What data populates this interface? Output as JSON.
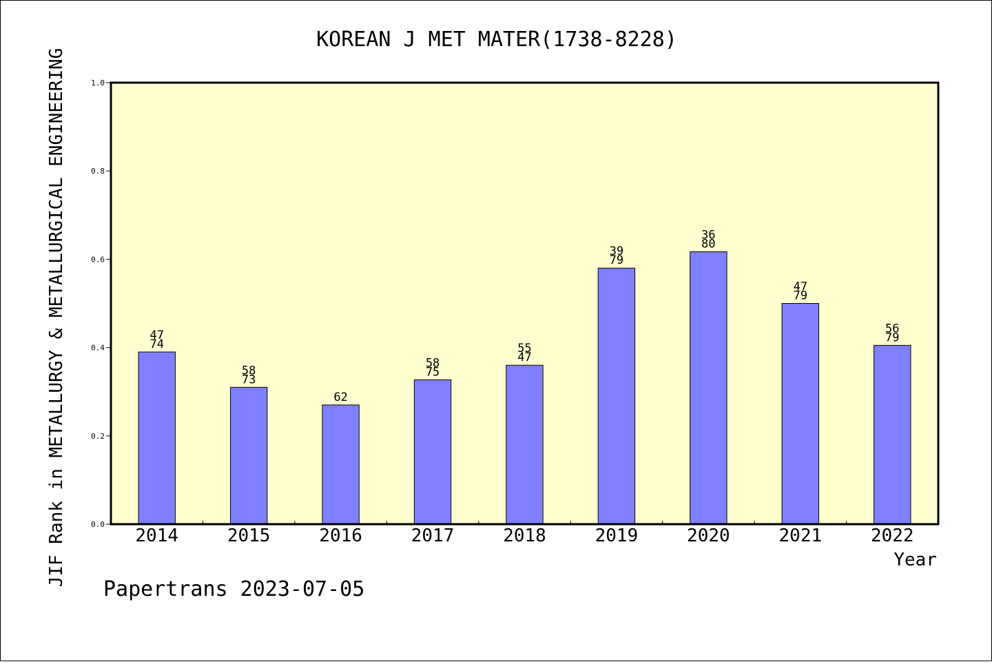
{
  "chart_data": {
    "type": "bar",
    "title": "KOREAN J MET MATER(1738-8228)",
    "xlabel": "Year",
    "ylabel": "JIF Rank in METALLURGY & METALLURGICAL ENGINEERING",
    "ylim": [
      0.0,
      1.0
    ],
    "yticks": [
      "0.0",
      "0.2",
      "0.4",
      "0.6",
      "0.8",
      "1.0"
    ],
    "categories": [
      "2014",
      "2015",
      "2016",
      "2017",
      "2018",
      "2019",
      "2020",
      "2021",
      "2022"
    ],
    "values": [
      0.39,
      0.31,
      0.27,
      0.327,
      0.36,
      0.58,
      0.617,
      0.5,
      0.405
    ],
    "bar_labels": [
      [
        "47",
        "74"
      ],
      [
        "58",
        "73"
      ],
      [
        "62"
      ],
      [
        "58",
        "75"
      ],
      [
        "55",
        "47"
      ],
      [
        "39",
        "79"
      ],
      [
        "36",
        "80"
      ],
      [
        "47",
        "79"
      ],
      [
        "56",
        "79"
      ]
    ],
    "bar_color": "#8080ff",
    "plot_background": "#ffffd0",
    "grid": false,
    "legend": "none"
  },
  "footer": {
    "text": "Papertrans 2023-07-05"
  }
}
